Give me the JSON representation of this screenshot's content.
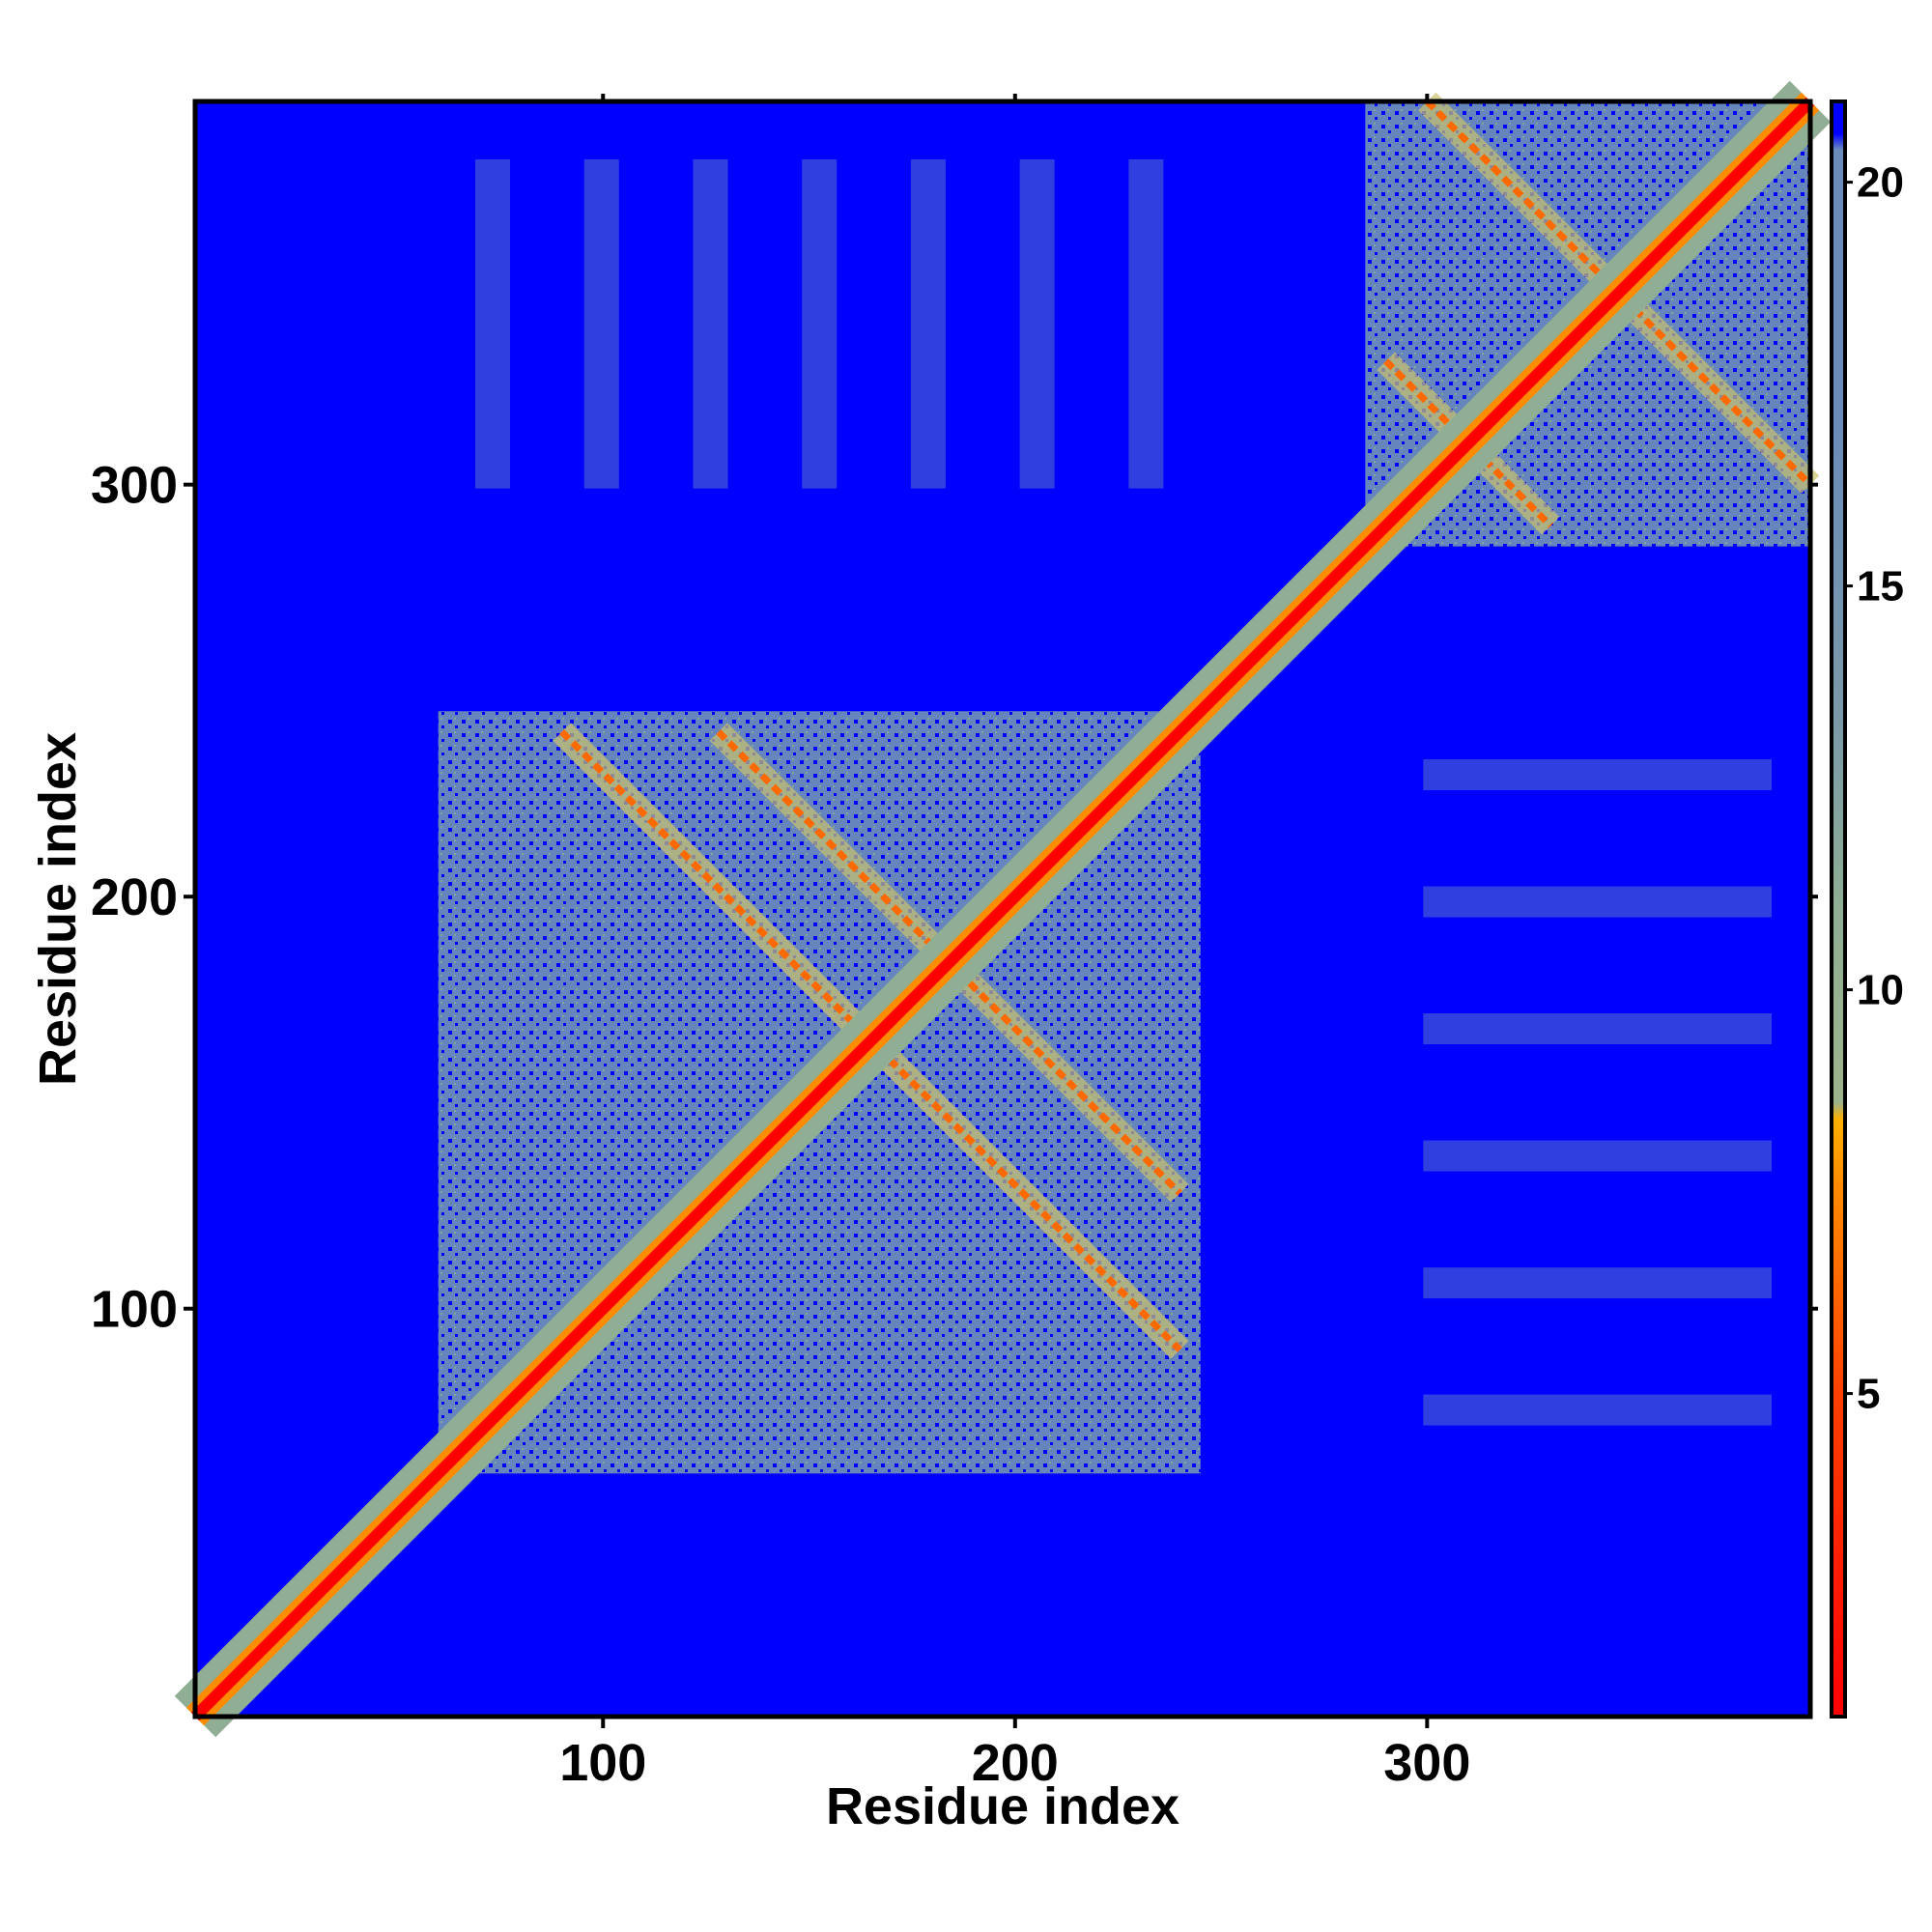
{
  "chart_data": {
    "type": "heatmap",
    "title": "",
    "xlabel": "Residue index",
    "ylabel": "Residue index",
    "xlim": [
      1,
      393
    ],
    "ylim": [
      1,
      393
    ],
    "x_ticks": [
      100,
      200,
      300
    ],
    "y_ticks": [
      100,
      200,
      300
    ],
    "colorbar": {
      "ticks": [
        5,
        10,
        15,
        20
      ],
      "range": [
        1,
        21
      ],
      "colors": [
        "#ff0000",
        "#ff8c00",
        "#9db38c",
        "#6b8cba",
        "#0000ff"
      ]
    },
    "diagonal": {
      "value": 1
    },
    "domains": [
      {
        "start": 60,
        "end": 245,
        "level": 16
      },
      {
        "start": 285,
        "end": 393,
        "level": 16
      }
    ],
    "contact_lines": [
      {
        "x": [
          90,
          240
        ],
        "y": [
          240,
          90
        ],
        "value": 5
      },
      {
        "x": [
          128,
          240
        ],
        "y": [
          240,
          128
        ],
        "value": 5
      },
      {
        "x": [
          290,
          330
        ],
        "y": [
          330,
          290
        ],
        "value": 5
      },
      {
        "x": [
          300,
          393
        ],
        "y": [
          393,
          300
        ],
        "value": 5
      }
    ],
    "background_value": 21,
    "grid": false
  }
}
